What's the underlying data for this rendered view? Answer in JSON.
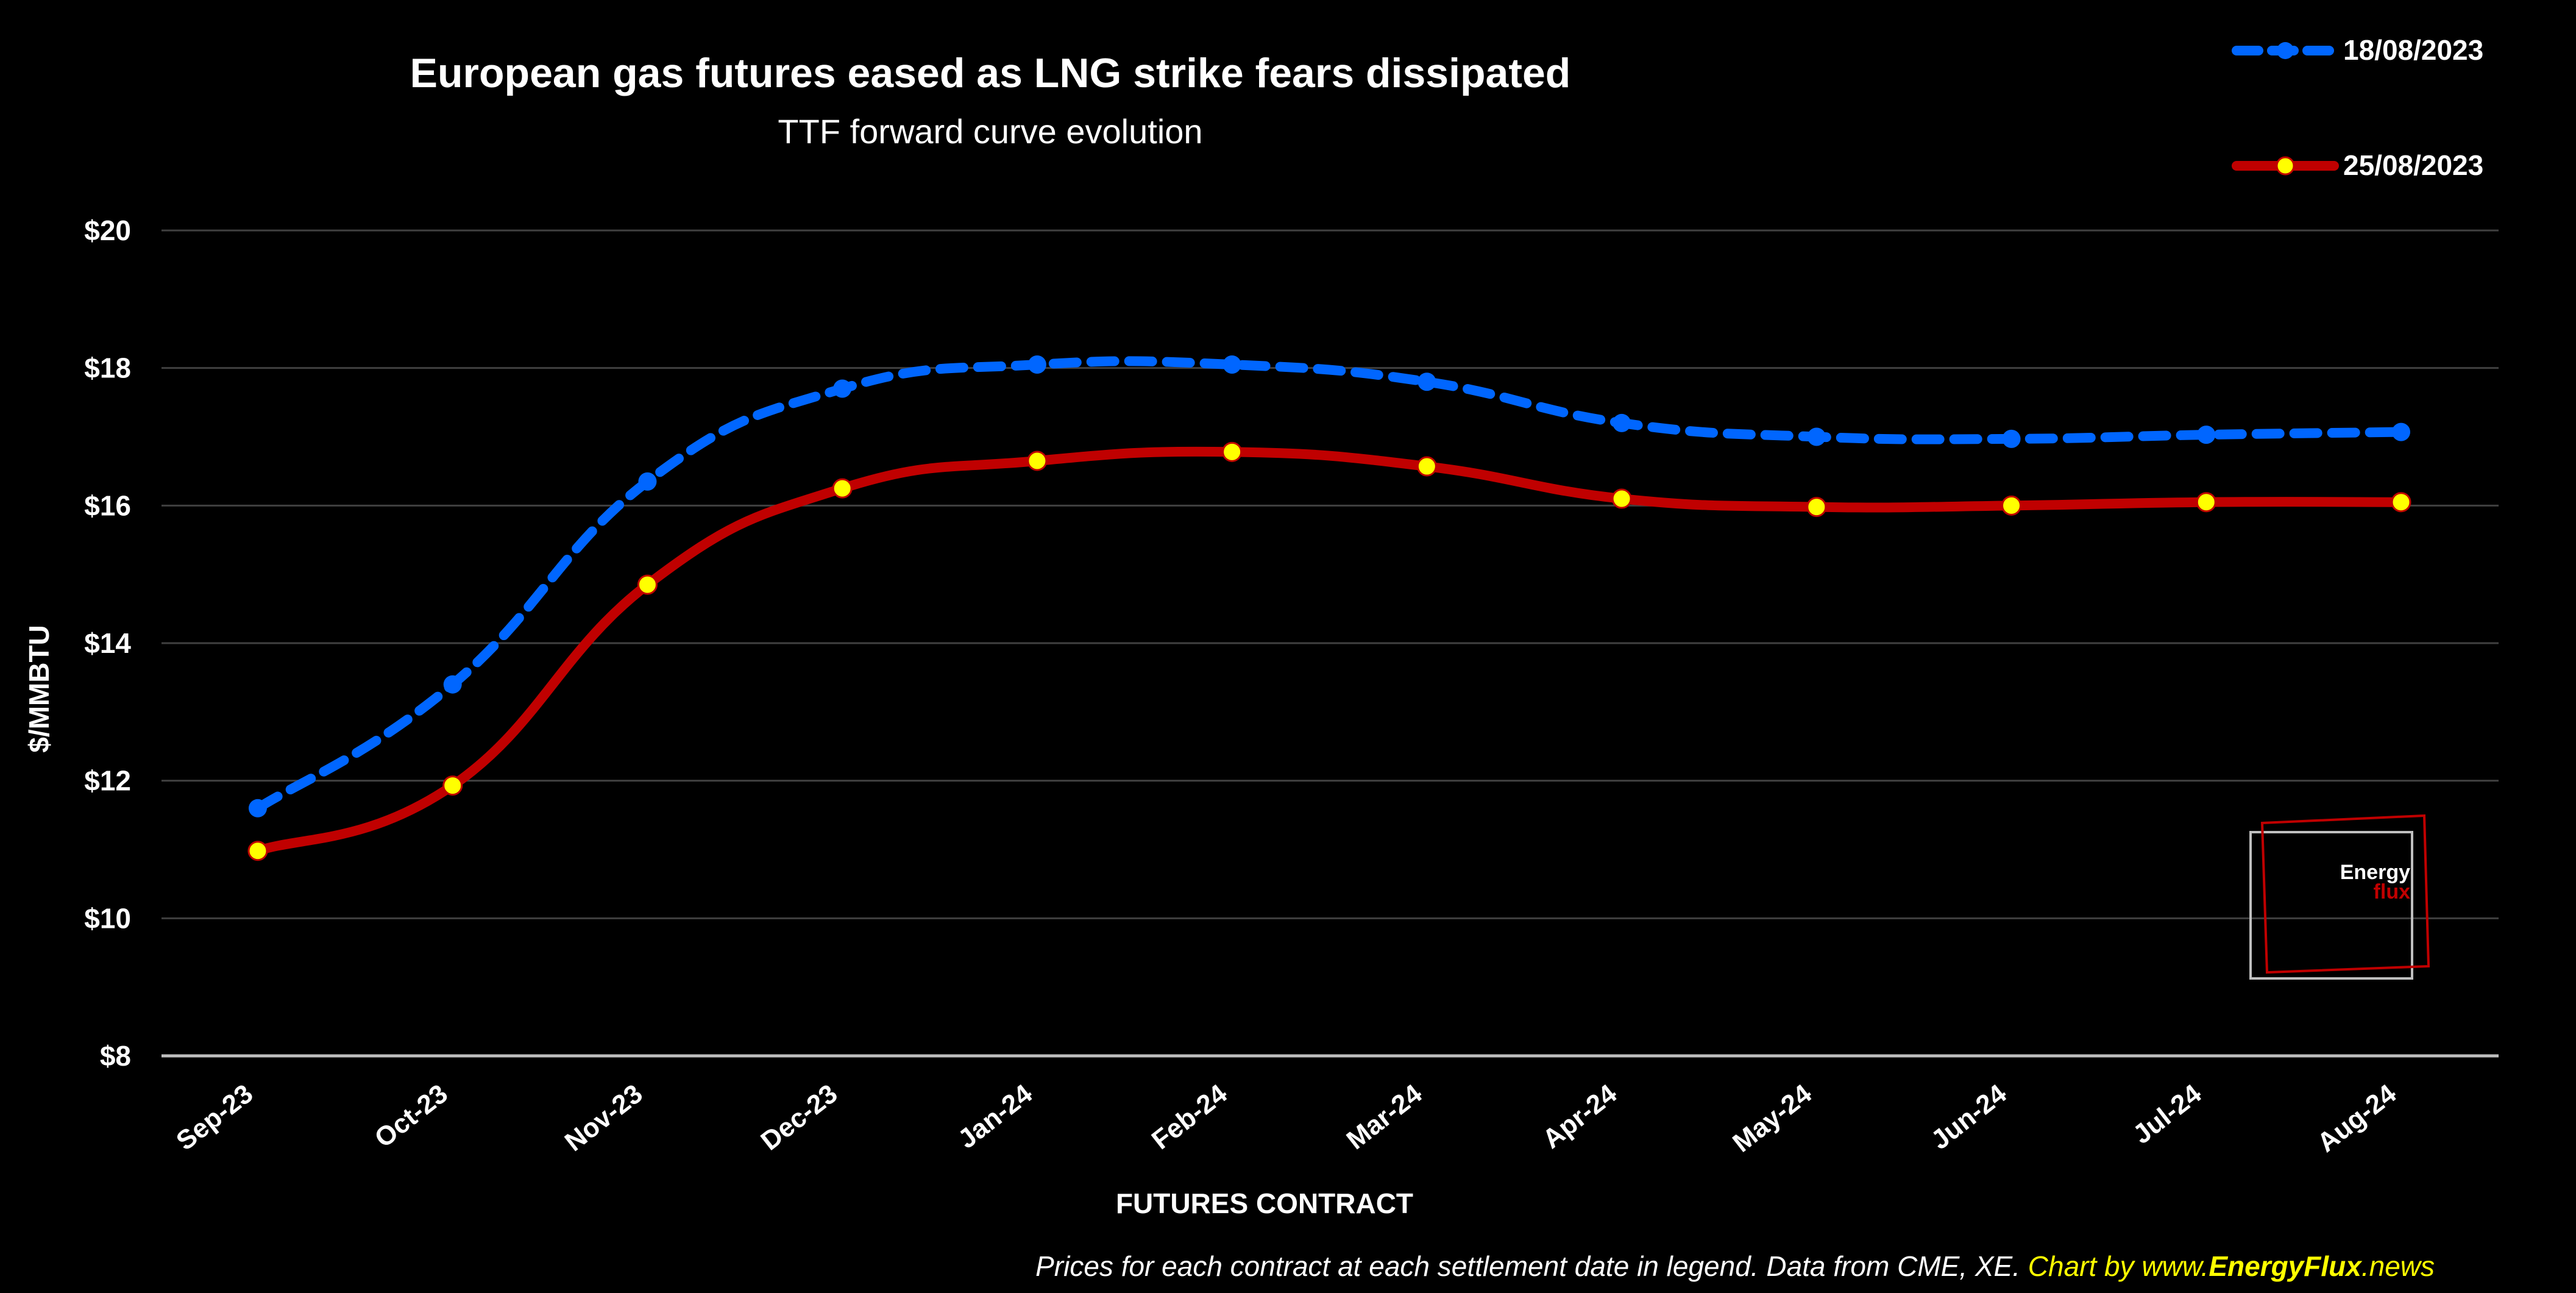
{
  "chart_data": {
    "type": "line",
    "title": "European gas futures eased as LNG strike fears dissipated",
    "subtitle": "TTF forward curve evolution",
    "xlabel": "FUTURES CONTRACT",
    "ylabel": "$/MMBTU",
    "categories": [
      "Sep-23",
      "Oct-23",
      "Nov-23",
      "Dec-23",
      "Jan-24",
      "Feb-24",
      "Mar-24",
      "Apr-24",
      "May-24",
      "Jun-24",
      "Jul-24",
      "Aug-24"
    ],
    "ylim": [
      8,
      20
    ],
    "yticks": [
      8,
      10,
      12,
      14,
      16,
      18,
      20
    ],
    "ytick_labels": [
      "$8",
      "$10",
      "$12",
      "$14",
      "$16",
      "$18",
      "$20"
    ],
    "grid": true,
    "legend_position": "top-right",
    "series": [
      {
        "name": "18/08/2023",
        "color": "#0066FF",
        "line_style": "dashed",
        "marker_color": "#0066FF",
        "values": [
          11.6,
          13.4,
          16.35,
          17.7,
          18.05,
          18.05,
          17.8,
          17.2,
          17.0,
          16.97,
          17.03,
          17.07
        ]
      },
      {
        "name": "25/08/2023",
        "color": "#C00000",
        "line_style": "solid",
        "marker_color": "#FFFF00",
        "values": [
          10.98,
          11.93,
          14.85,
          16.25,
          16.65,
          16.78,
          16.57,
          16.1,
          15.98,
          16.0,
          16.05,
          16.05
        ]
      }
    ]
  },
  "footer": {
    "note": "Prices for each contract at each settlement date in legend. Data from CME, XE.",
    "credit_prefix": "Chart by www.",
    "credit_brand": "EnergyFlux",
    "credit_suffix": ".news"
  },
  "logo": {
    "line1": "Energy",
    "line2": "flux"
  },
  "colors": {
    "background": "#000000",
    "grid": "#404040",
    "axis": "#BFBFBF",
    "credit": "#FFFF00",
    "logo_red": "#C00000"
  }
}
